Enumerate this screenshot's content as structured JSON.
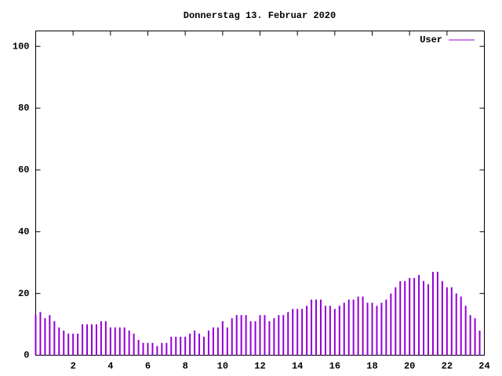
{
  "chart_data": {
    "type": "impulses",
    "title": "Donnerstag 13. Februar 2020",
    "x": [
      0,
      0.25,
      0.5,
      0.75,
      1,
      1.25,
      1.5,
      1.75,
      2,
      2.25,
      2.5,
      2.75,
      3,
      3.25,
      3.5,
      3.75,
      4,
      4.25,
      4.5,
      4.75,
      5,
      5.25,
      5.5,
      5.75,
      6,
      6.25,
      6.5,
      6.75,
      7,
      7.25,
      7.5,
      7.75,
      8,
      8.25,
      8.5,
      8.75,
      9,
      9.25,
      9.5,
      9.75,
      10,
      10.25,
      10.5,
      10.75,
      11,
      11.25,
      11.5,
      11.75,
      12,
      12.25,
      12.5,
      12.75,
      13,
      13.25,
      13.5,
      13.75,
      14,
      14.25,
      14.5,
      14.75,
      15,
      15.25,
      15.5,
      15.75,
      16,
      16.25,
      16.5,
      16.75,
      17,
      17.25,
      17.5,
      17.75,
      18,
      18.25,
      18.5,
      18.75,
      19,
      19.25,
      19.5,
      19.75,
      20,
      20.25,
      20.5,
      20.75,
      21,
      21.25,
      21.5,
      21.75,
      22,
      22.25,
      22.5,
      22.75,
      23,
      23.25,
      23.5,
      23.75
    ],
    "series": [
      {
        "name": "User",
        "color": "#9400d3",
        "values": [
          13,
          14,
          12,
          13,
          11,
          9,
          8,
          7,
          7,
          7,
          10,
          10,
          10,
          10,
          11,
          11,
          9,
          9,
          9,
          9,
          8,
          7,
          5,
          4,
          4,
          4,
          3,
          4,
          4,
          6,
          6,
          6,
          6,
          7,
          8,
          7,
          6,
          8,
          9,
          9,
          11,
          9,
          12,
          13,
          13,
          13,
          11,
          11,
          13,
          13,
          11,
          12,
          13,
          13,
          14,
          15,
          15,
          15,
          16,
          18,
          18,
          18,
          16,
          16,
          15,
          16,
          17,
          18,
          18,
          19,
          19,
          17,
          17,
          16,
          17,
          18,
          20,
          22,
          24,
          24,
          25,
          25,
          26,
          24,
          23,
          27,
          27,
          24,
          22,
          22,
          20,
          19,
          16,
          13,
          12,
          8
        ]
      }
    ],
    "xlim": [
      0,
      24
    ],
    "ylim": [
      0,
      105
    ],
    "xticks": [
      2,
      4,
      6,
      8,
      10,
      12,
      14,
      16,
      18,
      20,
      22,
      24
    ],
    "yticks": [
      0,
      20,
      40,
      60,
      80,
      100
    ]
  }
}
